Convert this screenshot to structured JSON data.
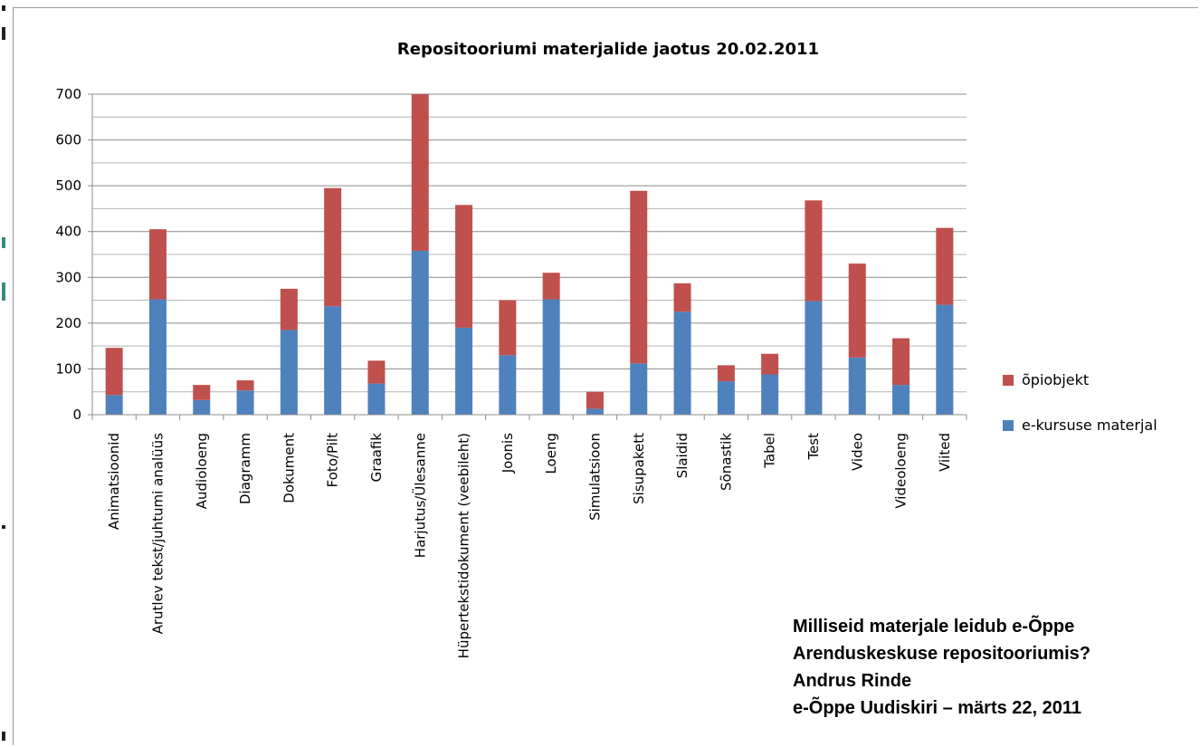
{
  "chart_data": {
    "type": "bar",
    "stacked": true,
    "title": "Repositooriumi materjalide jaotus 20.02.2011",
    "categories": [
      "Animatsioonid",
      "Arutlev tekst/juhtumi analüüs",
      "Audioloeng",
      "Diagramm",
      "Dokument",
      "Foto/Pilt",
      "Graafik",
      "Harjutus/Ülesanne",
      "Hüpertekstidokument (veebileht)",
      "Joonis",
      "Loeng",
      "Simulatsioon",
      "Sisupakett",
      "Slaidid",
      "Sõnastik",
      "Tabel",
      "Test",
      "Video",
      "Videoloeng",
      "Viited"
    ],
    "series": [
      {
        "name": "e-kursuse materjal",
        "color": "#4f81bd",
        "values": [
          43,
          252,
          32,
          53,
          185,
          237,
          68,
          358,
          190,
          130,
          252,
          13,
          112,
          225,
          73,
          88,
          248,
          125,
          65,
          240
        ]
      },
      {
        "name": "õpiobjekt",
        "color": "#c0504d",
        "values": [
          103,
          153,
          33,
          22,
          90,
          258,
          50,
          342,
          268,
          120,
          58,
          37,
          377,
          62,
          35,
          45,
          220,
          205,
          102,
          168
        ]
      }
    ],
    "ylim": [
      0,
      700
    ],
    "yticks": [
      "0",
      "100",
      "200",
      "300",
      "400",
      "500",
      "600",
      "700"
    ],
    "grid": true,
    "legend_position": "right"
  },
  "caption": {
    "line1": "Milliseid materjale leidub e-Õppe",
    "line2": "Arenduskeskuse repositooriumis?",
    "line3": "Andrus Rinde",
    "line4": "e-Õppe Uudiskiri  – märts 22, 2011"
  }
}
